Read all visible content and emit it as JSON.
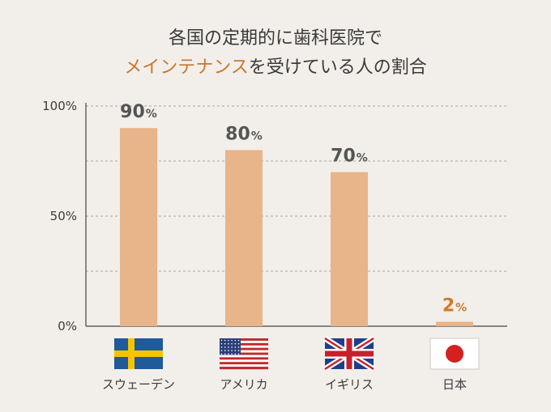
{
  "title": {
    "line1": "各国の定期的に歯科医院で",
    "line2_accent": "メインテナンス",
    "line2_rest": "を受けている人の割合"
  },
  "colors": {
    "bar": "#e8b48a",
    "value_text": "#555555",
    "value_highlight": "#d07a2a",
    "title_accent": "#c8782a"
  },
  "chart_data": {
    "type": "bar",
    "title": "各国の定期的に歯科医院でメインテナンスを受けている人の割合",
    "categories": [
      "スウェーデン",
      "アメリカ",
      "イギリス",
      "日本"
    ],
    "values": [
      90,
      80,
      70,
      2
    ],
    "value_unit": "%",
    "highlight_index": 3,
    "category_icons": [
      "sweden-flag",
      "usa-flag",
      "uk-flag",
      "japan-flag"
    ],
    "yticks": [
      "0%",
      "50%",
      "100%"
    ],
    "ylim": [
      0,
      100
    ],
    "grid": true,
    "xlabel": "",
    "ylabel": ""
  }
}
